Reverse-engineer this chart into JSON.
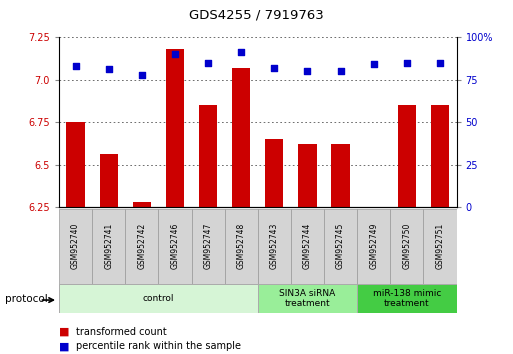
{
  "title": "GDS4255 / 7919763",
  "samples": [
    "GSM952740",
    "GSM952741",
    "GSM952742",
    "GSM952746",
    "GSM952747",
    "GSM952748",
    "GSM952743",
    "GSM952744",
    "GSM952745",
    "GSM952749",
    "GSM952750",
    "GSM952751"
  ],
  "bar_values": [
    6.75,
    6.56,
    6.28,
    7.18,
    6.85,
    7.07,
    6.65,
    6.62,
    6.62,
    6.25,
    6.85,
    6.85
  ],
  "dot_values": [
    83,
    81,
    78,
    90,
    85,
    91,
    82,
    80,
    80,
    84,
    85,
    85
  ],
  "bar_color": "#cc0000",
  "dot_color": "#0000cc",
  "ylim_left": [
    6.25,
    7.25
  ],
  "ylim_right": [
    0,
    100
  ],
  "yticks_left": [
    6.25,
    6.5,
    6.75,
    7.0,
    7.25
  ],
  "yticks_right": [
    0,
    25,
    50,
    75,
    100
  ],
  "groups": [
    {
      "label": "control",
      "start": 0,
      "end": 6,
      "color": "#d6f5d6",
      "border": "#aaaaaa"
    },
    {
      "label": "SIN3A siRNA\ntreatment",
      "start": 6,
      "end": 9,
      "color": "#99ee99",
      "border": "#aaaaaa"
    },
    {
      "label": "miR-138 mimic\ntreatment",
      "start": 9,
      "end": 12,
      "color": "#44cc44",
      "border": "#aaaaaa"
    }
  ],
  "legend_bar_label": "transformed count",
  "legend_dot_label": "percentile rank within the sample",
  "protocol_label": "protocol",
  "grid_color": "#555555",
  "tick_gray": "#cccccc",
  "background_color": "#ffffff",
  "bar_width": 0.55
}
